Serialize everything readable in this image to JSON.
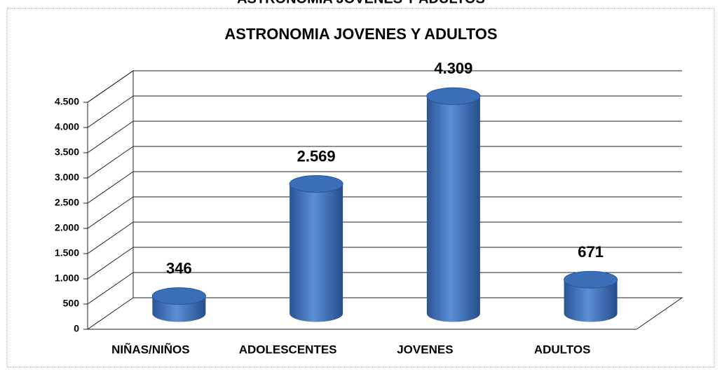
{
  "chart_data": {
    "type": "bar3d",
    "title": "ASTRONOMIA JOVENES Y ADULTOS",
    "categories": [
      "NIÑAS/NIÑOS",
      "ADOLESCENTES",
      "JOVENES",
      "ADULTOS"
    ],
    "values": [
      346,
      2569,
      4309,
      671
    ],
    "value_labels": [
      "346",
      "2.569",
      "4.309",
      "671"
    ],
    "color": "#3a6fb8",
    "ylim": [
      0,
      4500
    ],
    "yticks": [
      0,
      500,
      {
        "value": 1000,
        "label": "1.000"
      },
      {
        "value": 1500,
        "label": "1.500"
      },
      {
        "value": 2000,
        "label": "2.000"
      },
      {
        "value": 2500,
        "label": "2.500"
      },
      {
        "value": 3000,
        "label": "3.000"
      },
      {
        "value": 3500,
        "label": "3.500"
      },
      {
        "value": 4000,
        "label": "4.000"
      },
      {
        "value": 4500,
        "label": "4.500"
      }
    ],
    "grid": true
  }
}
